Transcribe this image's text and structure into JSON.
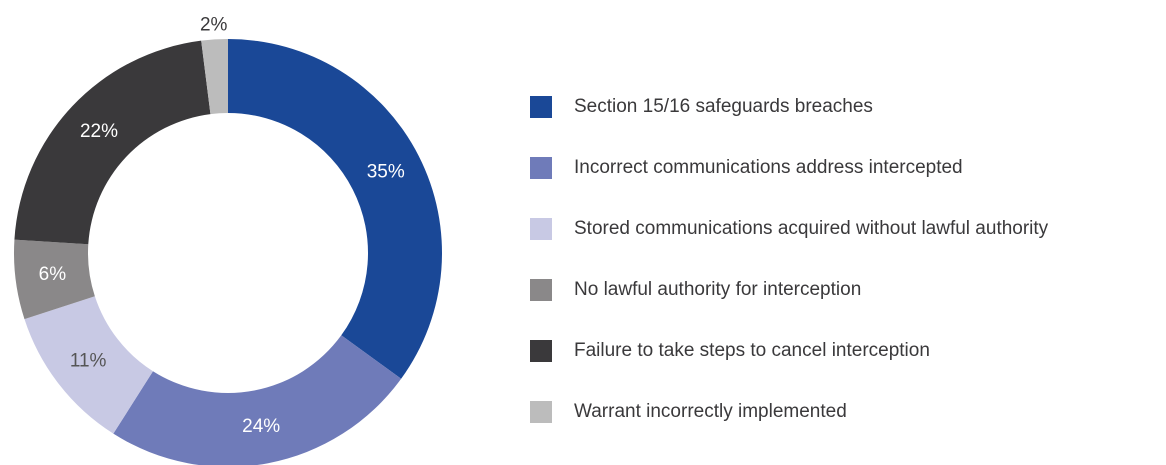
{
  "chart_data": {
    "type": "pie",
    "categories": [
      "Section 15/16 safeguards breaches",
      "Incorrect communications address intercepted",
      "Stored communications acquired without lawful authority",
      "No lawful authority for interception",
      "Failure to take steps to cancel interception",
      "Warrant incorrectly implemented"
    ],
    "values": [
      35,
      24,
      11,
      6,
      22,
      2
    ],
    "value_labels": [
      "35%",
      "24%",
      "11%",
      "6%",
      "22%",
      "2%"
    ],
    "colors": [
      "#1a4897",
      "#6f7bb9",
      "#c8c9e4",
      "#8a8889",
      "#3a393b",
      "#bcbcbc"
    ],
    "legend": "right"
  }
}
